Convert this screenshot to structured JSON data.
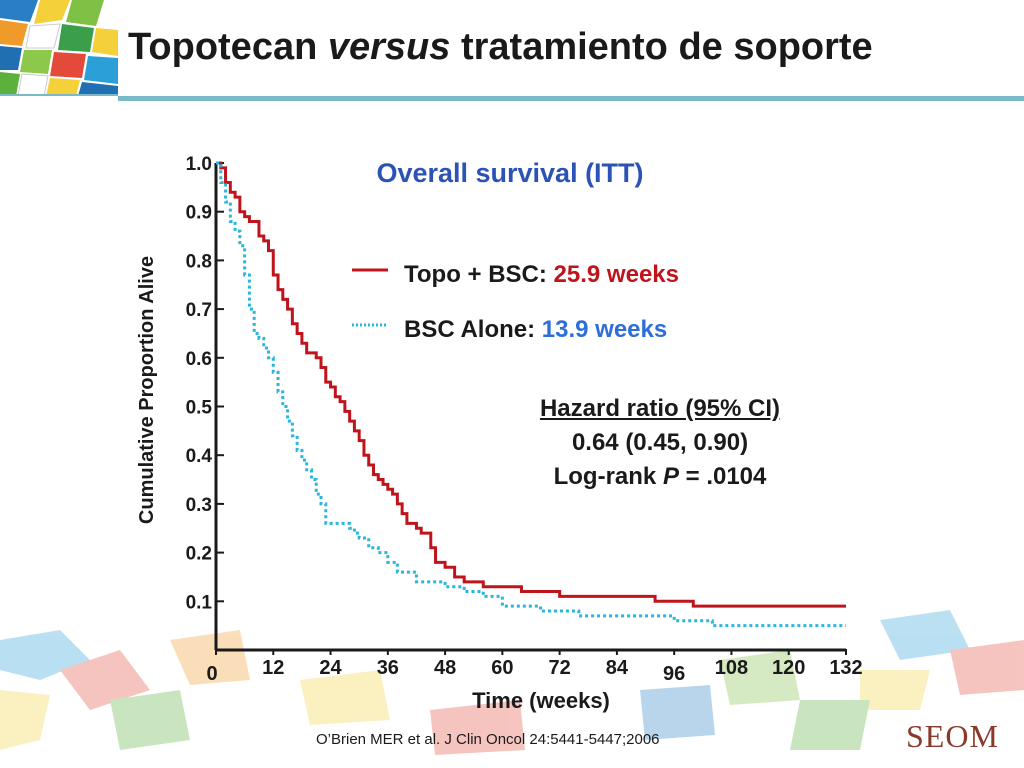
{
  "slide": {
    "title_part1": "Topotecan ",
    "title_italic": "versus",
    "title_part2": " tratamiento de soporte",
    "citation": "O’Brien MER et al. J Clin Oncol 24:5441-5447;2006",
    "logo": "SEOM"
  },
  "chart_data": {
    "type": "line",
    "title": "Overall survival (ITT)",
    "xlabel": "Time (weeks)",
    "ylabel": "Cumulative Proportion Alive",
    "xlim": [
      0,
      132
    ],
    "ylim": [
      0,
      1.0
    ],
    "x_ticks": [
      "0",
      "12",
      "24",
      "36",
      "48",
      "60",
      "72",
      "84",
      "96",
      "108",
      "120",
      "132"
    ],
    "y_ticks": [
      "0.1",
      "0.2",
      "0.3",
      "0.4",
      "0.5",
      "0.6",
      "0.7",
      "0.8",
      "0.9",
      "1.0"
    ],
    "legend_placement": "upper-right",
    "series": [
      {
        "name": "Topo + BSC:",
        "median": "25.9 weeks",
        "color": "#c0141c",
        "line_style": "solid",
        "x": [
          0,
          1,
          2,
          3,
          4,
          5,
          6,
          7,
          8,
          9,
          10,
          11,
          12,
          13,
          14,
          15,
          16,
          17,
          18,
          19,
          20,
          21,
          22,
          23,
          24,
          25,
          26,
          27,
          28,
          29,
          30,
          31,
          32,
          33,
          34,
          35,
          36,
          37,
          38,
          39,
          40,
          41,
          42,
          43,
          44,
          45,
          46,
          47,
          48,
          50,
          52,
          54,
          56,
          58,
          60,
          64,
          68,
          72,
          76,
          80,
          84,
          88,
          92,
          96,
          100,
          104,
          108,
          112,
          116,
          120,
          124,
          128,
          132
        ],
        "y": [
          1.0,
          0.99,
          0.96,
          0.94,
          0.93,
          0.9,
          0.89,
          0.88,
          0.88,
          0.85,
          0.84,
          0.82,
          0.77,
          0.74,
          0.72,
          0.7,
          0.67,
          0.65,
          0.63,
          0.61,
          0.61,
          0.6,
          0.58,
          0.55,
          0.54,
          0.52,
          0.51,
          0.49,
          0.47,
          0.45,
          0.43,
          0.4,
          0.38,
          0.36,
          0.35,
          0.34,
          0.33,
          0.32,
          0.3,
          0.28,
          0.26,
          0.26,
          0.25,
          0.24,
          0.24,
          0.21,
          0.18,
          0.18,
          0.17,
          0.15,
          0.14,
          0.14,
          0.13,
          0.13,
          0.13,
          0.12,
          0.12,
          0.11,
          0.11,
          0.11,
          0.11,
          0.11,
          0.1,
          0.1,
          0.09,
          0.09,
          0.09,
          0.09,
          0.09,
          0.09,
          0.09,
          0.09,
          0.09
        ]
      },
      {
        "name": "BSC Alone:",
        "median": "13.9 weeks",
        "color": "#29b6dc",
        "line_style": "dotted",
        "x": [
          0,
          1,
          2,
          3,
          4,
          5,
          6,
          7,
          8,
          9,
          10,
          11,
          12,
          13,
          14,
          15,
          16,
          17,
          18,
          19,
          20,
          21,
          22,
          23,
          24,
          25,
          26,
          27,
          28,
          29,
          30,
          32,
          34,
          36,
          38,
          40,
          42,
          44,
          46,
          48,
          50,
          52,
          54,
          56,
          60,
          64,
          68,
          72,
          76,
          80,
          84,
          88,
          92,
          96,
          100,
          104,
          108,
          112,
          116,
          120,
          124,
          128,
          132
        ],
        "y": [
          1.0,
          0.96,
          0.92,
          0.88,
          0.86,
          0.83,
          0.77,
          0.7,
          0.65,
          0.64,
          0.62,
          0.6,
          0.57,
          0.53,
          0.5,
          0.47,
          0.44,
          0.41,
          0.39,
          0.37,
          0.35,
          0.32,
          0.3,
          0.26,
          0.26,
          0.26,
          0.26,
          0.26,
          0.25,
          0.24,
          0.23,
          0.21,
          0.2,
          0.18,
          0.16,
          0.16,
          0.14,
          0.14,
          0.14,
          0.13,
          0.13,
          0.12,
          0.12,
          0.11,
          0.09,
          0.09,
          0.08,
          0.08,
          0.07,
          0.07,
          0.07,
          0.07,
          0.07,
          0.06,
          0.06,
          0.05,
          0.05,
          0.05,
          0.05,
          0.05,
          0.05,
          0.05,
          0.05
        ]
      }
    ],
    "annotation": {
      "title": "Hazard ratio (95% CI)",
      "value": "0.64 (0.45, 0.90)",
      "pvalue_prefix": "Log-rank ",
      "pvalue_italic": "P",
      "pvalue_suffix": " = .0104"
    }
  }
}
